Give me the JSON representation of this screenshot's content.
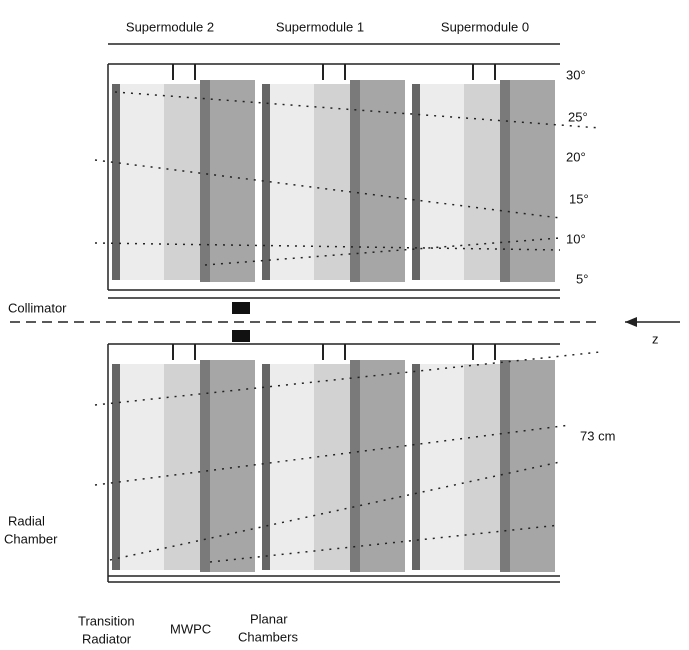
{
  "supermodules": [
    "Supermodule 2",
    "Supermodule 1",
    "Supermodule 0"
  ],
  "angles": [
    "30°",
    "25°",
    "20°",
    "15°",
    "10°",
    "5°"
  ],
  "collimator": "Collimator",
  "beam_axis": "z",
  "radius": "73 cm",
  "radial_chamber": [
    "Radial",
    "Chamber"
  ],
  "transition_radiator": [
    "Transition",
    "Radiator"
  ],
  "mwpc": "MWPC",
  "planar_chambers": [
    "Planar",
    "Chambers"
  ]
}
